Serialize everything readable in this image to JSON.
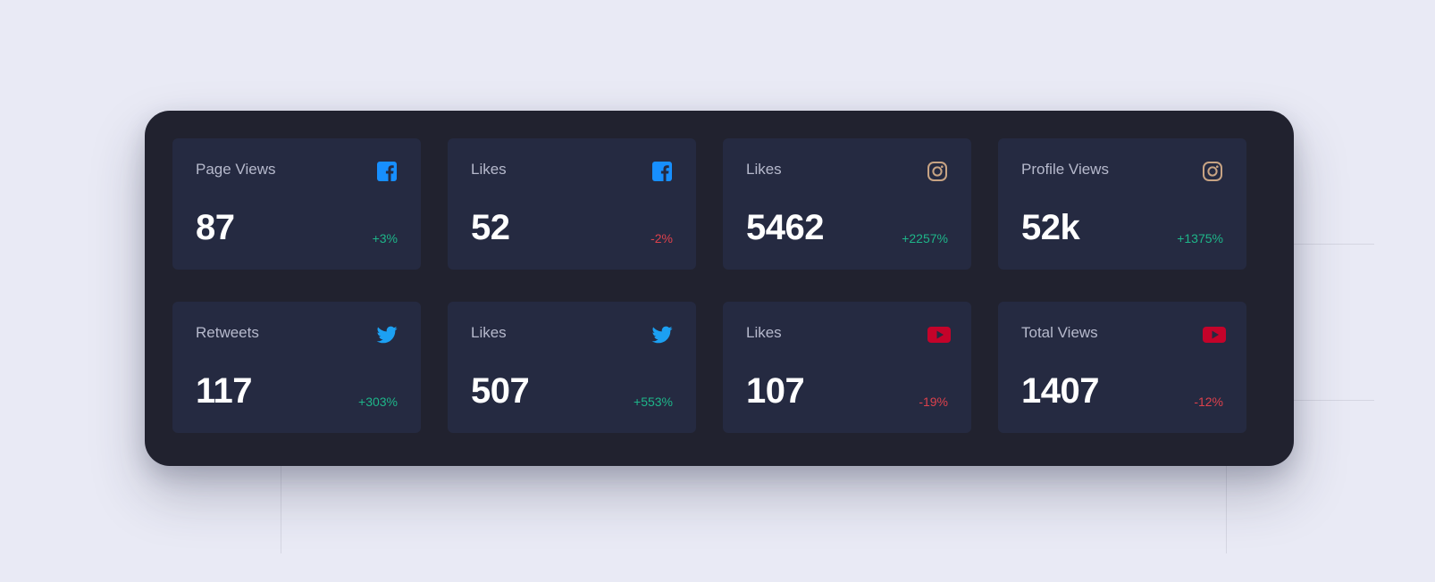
{
  "colors": {
    "background": "#e9eaf5",
    "panel": "#21222f",
    "card": "#252a41",
    "up": "#1eb589",
    "down": "#dc414c",
    "facebook": "#178ffe",
    "instagram": "#c7a383",
    "twitter": "#1ca0f2",
    "youtube": "#c4032a"
  },
  "cards": [
    {
      "label": "Page Views",
      "icon": "facebook-icon",
      "value": "87",
      "change": "+3%",
      "trend": "up"
    },
    {
      "label": "Likes",
      "icon": "facebook-icon",
      "value": "52",
      "change": "-2%",
      "trend": "down"
    },
    {
      "label": "Likes",
      "icon": "instagram-icon",
      "value": "5462",
      "change": "+2257%",
      "trend": "up"
    },
    {
      "label": "Profile Views",
      "icon": "instagram-icon",
      "value": "52k",
      "change": "+1375%",
      "trend": "up"
    },
    {
      "label": "Retweets",
      "icon": "twitter-icon",
      "value": "117",
      "change": "+303%",
      "trend": "up"
    },
    {
      "label": "Likes",
      "icon": "twitter-icon",
      "value": "507",
      "change": "+553%",
      "trend": "up"
    },
    {
      "label": "Likes",
      "icon": "youtube-icon",
      "value": "107",
      "change": "-19%",
      "trend": "down"
    },
    {
      "label": "Total Views",
      "icon": "youtube-icon",
      "value": "1407",
      "change": "-12%",
      "trend": "down"
    }
  ]
}
